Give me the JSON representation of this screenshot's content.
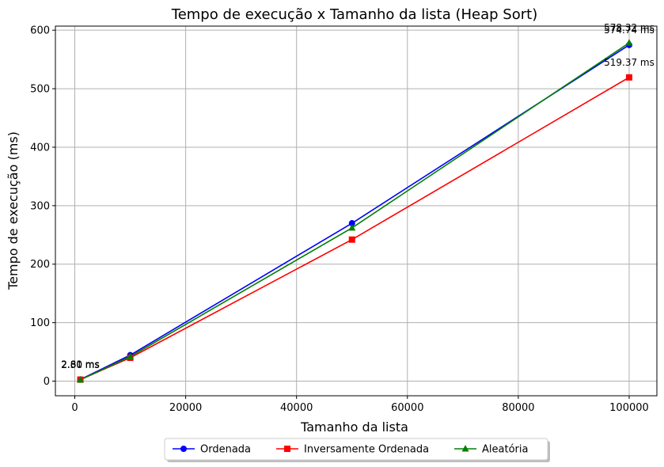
{
  "chart_data": {
    "type": "line",
    "title": "Tempo de execução x Tamanho da lista (Heap Sort)",
    "xlabel": "Tamanho da lista",
    "ylabel": "Tempo de execução (ms)",
    "xlim": [
      -3500,
      105000
    ],
    "ylim": [
      -25,
      607
    ],
    "xticks": [
      0,
      20000,
      40000,
      60000,
      80000,
      100000
    ],
    "yticks": [
      0,
      100,
      200,
      300,
      400,
      500,
      600
    ],
    "grid": true,
    "legend_position": "bottom-center",
    "x": [
      1000,
      10000,
      50000,
      100000
    ],
    "series": [
      {
        "name": "Ordenada",
        "color": "#0000ff",
        "marker": "circle",
        "values": [
          2.8,
          44.5,
          270,
          574.74
        ],
        "labels": [
          "2.80 ms",
          null,
          null,
          "574.74 ms"
        ]
      },
      {
        "name": "Inversamente Ordenada",
        "color": "#ff0000",
        "marker": "square",
        "values": [
          2.61,
          40,
          242,
          519.37
        ],
        "labels": [
          "2.61 ms",
          null,
          null,
          "519.37 ms"
        ]
      },
      {
        "name": "Aleatória",
        "color": "#008000",
        "marker": "triangle",
        "values": [
          2.3,
          42,
          262,
          578.32
        ],
        "labels": [
          "2.30 ms",
          null,
          null,
          "578.32 ms"
        ]
      }
    ]
  }
}
